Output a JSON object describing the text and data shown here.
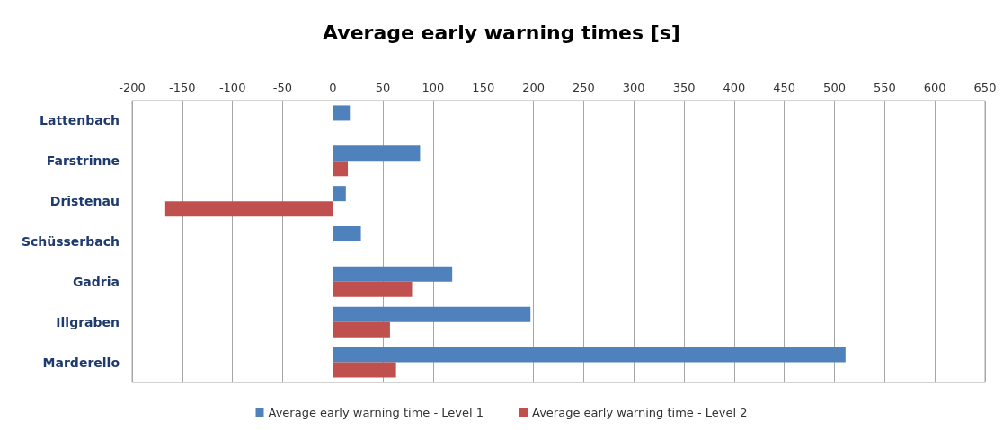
{
  "chart_data": {
    "type": "bar",
    "orientation": "horizontal",
    "title": "Average early warning times [s]",
    "categories": [
      "Lattenbach",
      "Farstrinne",
      "Dristenau",
      "Schüsserbach",
      "Gadria",
      "Illgraben",
      "Marderello"
    ],
    "series": [
      {
        "name": "Average early warning time - Level 1",
        "color": "#4f81bd",
        "values": [
          17,
          87,
          13,
          28,
          119,
          197,
          511
        ]
      },
      {
        "name": "Average early warning time - Level 2",
        "color": "#c0504d",
        "values": [
          null,
          15,
          -167,
          null,
          79,
          57,
          63
        ]
      }
    ],
    "xlim": [
      -200,
      650
    ],
    "xticks": [
      -200,
      -150,
      -100,
      -50,
      0,
      50,
      100,
      150,
      200,
      250,
      300,
      350,
      400,
      450,
      500,
      550,
      600,
      650
    ],
    "grid": "x",
    "legend": "bottom"
  }
}
